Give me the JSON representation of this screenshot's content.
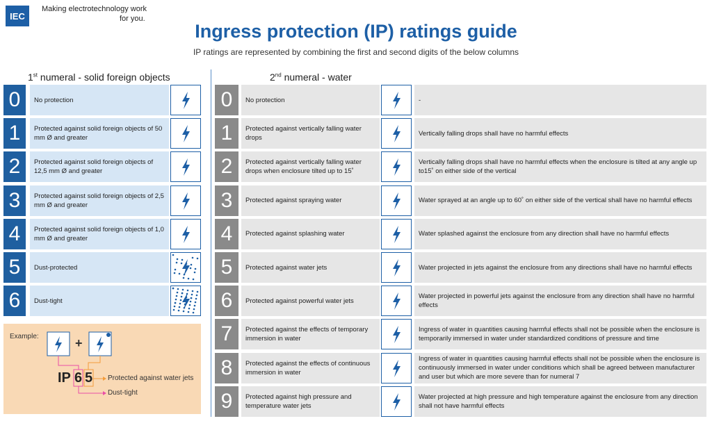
{
  "header": {
    "logo": "IEC",
    "slogan": [
      "Making  electrotechnology work",
      "for you."
    ],
    "title": "Ingress protection (IP) ratings guide",
    "subtitle": "IP ratings are represented by combining the first and second digits of the below columns"
  },
  "solids": {
    "heading": {
      "number": "1",
      "ordinal": "st",
      "text": " numeral - solid foreign objects"
    },
    "rows": [
      {
        "digit": "0",
        "text": "No protection"
      },
      {
        "digit": "1",
        "text": "Protected against solid foreign objects of 50 mm Ø and greater"
      },
      {
        "digit": "2",
        "text": "Protected against solid foreign objects of 12,5 mm Ø and greater"
      },
      {
        "digit": "3",
        "text": "Protected against solid foreign objects of 2,5 mm Ø and greater"
      },
      {
        "digit": "4",
        "text": "Protected against solid foreign objects of 1,0 mm Ø and greater"
      },
      {
        "digit": "5",
        "text": "Dust-protected"
      },
      {
        "digit": "6",
        "text": "Dust-tight"
      }
    ]
  },
  "water": {
    "heading": {
      "number": "2",
      "ordinal": "nd",
      "text": " numeral - water"
    },
    "rows": [
      {
        "digit": "0",
        "text": "No protection",
        "detail": "-"
      },
      {
        "digit": "1",
        "text": "Protected against vertically falling water drops",
        "detail": "Vertically falling drops shall have no harmful effects"
      },
      {
        "digit": "2",
        "text": "Protected against vertically falling water drops when enclosure tilted up to 15˚",
        "detail": "Vertically falling drops shall have no harmful effects when the enclosure is tilted at any angle up to15˚ on either side of the vertical"
      },
      {
        "digit": "3",
        "text": "Protected against spraying water",
        "detail": "Water sprayed at an angle up to 60˚ on either side of the vertical shall have no harmful effects"
      },
      {
        "digit": "4",
        "text": "Protected against splashing water",
        "detail": "Water splashed against the enclosure from any direction shall have no harmful effects"
      },
      {
        "digit": "5",
        "text": "Protected against water jets",
        "detail": "Water projected in jets against the enclosure from any directions shall have no harmful effects"
      },
      {
        "digit": "6",
        "text": "Protected against powerful water jets",
        "detail": "Water projected in powerful jets against the enclosure from any direction shall have no harmful effects"
      },
      {
        "digit": "7",
        "text": "Protected against the effects of temporary immersion in water",
        "detail": "Ingress of water in quantities causing harmful effects shall not be possible when the enclosure is temporarily immersed in water under standardized conditions of pressure and time"
      },
      {
        "digit": "8",
        "text": "Protected against the effects of continuous immersion in water",
        "detail": "Ingress of water in quantities causing harmful effects shall not be possible when the enclosure is continuously immersed in water under conditions which shall be agreed between manufacturer and user but which are more severe than for numeral 7"
      },
      {
        "digit": "9",
        "text": "Protected against high pressure and temperature water jets",
        "detail": "Water projected at high pressure and high temperature against the enclosure from any direction shall not have harmful effects"
      }
    ]
  },
  "example": {
    "label": "Example:",
    "plus": "+",
    "prefix": "IP",
    "first": "6",
    "second": "5",
    "second_meaning": "Protected against water jets",
    "first_meaning": "Dust-tight"
  }
}
